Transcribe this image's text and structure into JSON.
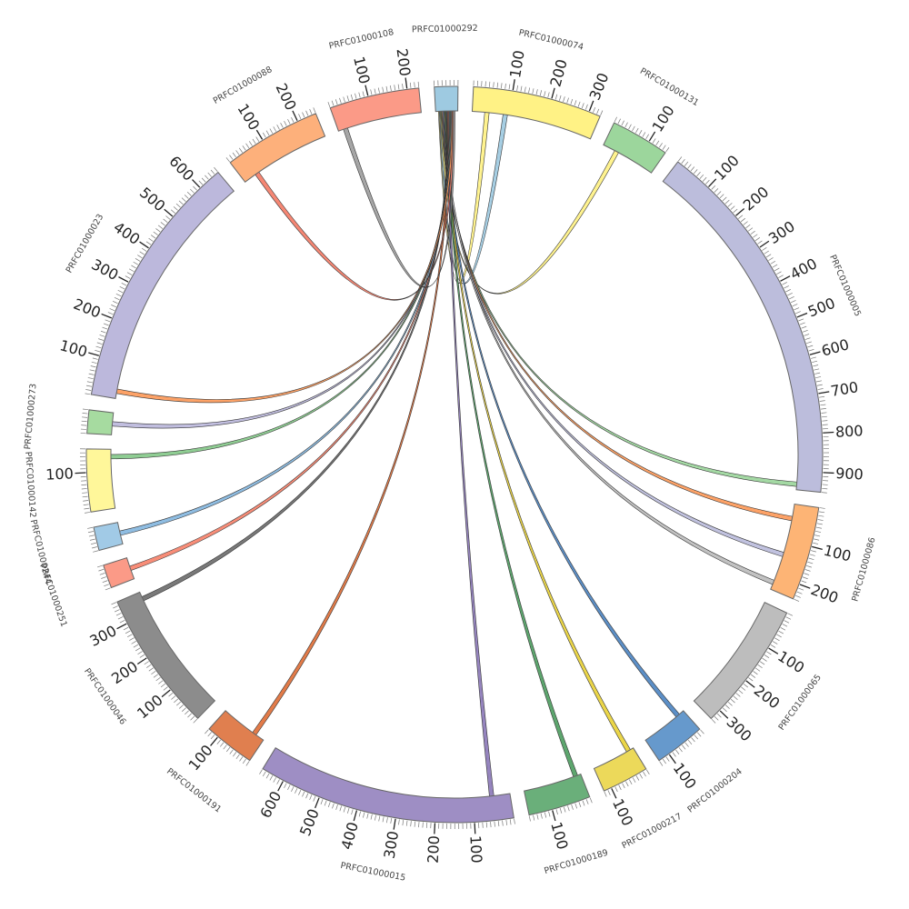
{
  "chart_data": {
    "type": "chord",
    "tick_major": 100,
    "tick_minor": 10,
    "segments": [
      {
        "id": "PRFC01000292",
        "length": 60,
        "color": "#9ecae1",
        "center": "PRFC01000292"
      },
      {
        "id": "PRFC01000074",
        "length": 330,
        "color": "#fff285",
        "center": "PRFC01000074"
      },
      {
        "id": "PRFC01000131",
        "length": 150,
        "color": "#9cd69c",
        "center": "PRFC01000131"
      },
      {
        "id": "PRFC01000005",
        "length": 950,
        "color": "#bcbddc",
        "center": "PRFC01000005"
      },
      {
        "id": "PRFC01000086",
        "length": 240,
        "color": "#fdb475",
        "center": "PRFC01000086"
      },
      {
        "id": "PRFC01000065",
        "length": 330,
        "color": "#bdbdbd",
        "center": "PRFC01000065"
      },
      {
        "id": "PRFC01000204",
        "length": 130,
        "color": "#6699cc",
        "center": "PRFC01000204"
      },
      {
        "id": "PRFC01000217",
        "length": 120,
        "color": "#ecd95a",
        "center": "PRFC01000217"
      },
      {
        "id": "PRFC01000189",
        "length": 160,
        "color": "#6aaf7a",
        "center": "PRFC01000189"
      },
      {
        "id": "PRFC01000015",
        "length": 660,
        "color": "#9e8ec4",
        "center": "PRFC01000015"
      },
      {
        "id": "PRFC01000191",
        "length": 130,
        "color": "#e07f4f",
        "center": "PRFC01000191"
      },
      {
        "id": "PRFC01000046",
        "length": 360,
        "color": "#8c8c8c",
        "center": "PRFC01000046"
      },
      {
        "id": "PRFC01000251",
        "length": 60,
        "color": "#fb9a87",
        "center": "PRFC01000251"
      },
      {
        "id": "PRFC01000244",
        "length": 60,
        "color": "#a1cae6",
        "center": "PRFC01000244"
      },
      {
        "id": "PRFC01000142",
        "length": 160,
        "color": "#fff79a",
        "center": "PRFC01000142"
      },
      {
        "id": "PRFC01000273",
        "length": 60,
        "color": "#a6dba0",
        "center": "PRFC01000273"
      },
      {
        "id": "PRFC01000023",
        "length": 660,
        "color": "#bcb8dc",
        "center": "PRFC01000023"
      },
      {
        "id": "PRFC01000088",
        "length": 250,
        "color": "#fdb07b",
        "center": "PRFC01000088"
      },
      {
        "id": "PRFC01000108",
        "length": 230,
        "color": "#fb9a87",
        "center": "PRFC01000108"
      }
    ],
    "links": [
      {
        "seg": "PRFC01000074",
        "pos": 40,
        "color": "#fff285"
      },
      {
        "seg": "PRFC01000074",
        "pos": 90,
        "color": "#9ecae1"
      },
      {
        "seg": "PRFC01000131",
        "pos": 40,
        "color": "#fff285"
      },
      {
        "seg": "PRFC01000005",
        "pos": 935,
        "color": "#9cd69c"
      },
      {
        "seg": "PRFC01000086",
        "pos": 40,
        "color": "#fd9a5a"
      },
      {
        "seg": "PRFC01000086",
        "pos": 140,
        "color": "#bcbddc"
      },
      {
        "seg": "PRFC01000086",
        "pos": 220,
        "color": "#bdbdbd"
      },
      {
        "seg": "PRFC01000204",
        "pos": 20,
        "color": "#4e86c2"
      },
      {
        "seg": "PRFC01000217",
        "pos": 15,
        "color": "#e9d23a"
      },
      {
        "seg": "PRFC01000189",
        "pos": 15,
        "color": "#4f9e62"
      },
      {
        "seg": "PRFC01000015",
        "pos": 50,
        "color": "#8c7ab8"
      },
      {
        "seg": "PRFC01000191",
        "pos": 30,
        "color": "#e0703a"
      },
      {
        "seg": "PRFC01000046",
        "pos": 340,
        "color": "#6e6e6e"
      },
      {
        "seg": "PRFC01000251",
        "pos": 30,
        "color": "#f7836d"
      },
      {
        "seg": "PRFC01000244",
        "pos": 30,
        "color": "#86b7df"
      },
      {
        "seg": "PRFC01000142",
        "pos": 140,
        "color": "#86c98a"
      },
      {
        "seg": "PRFC01000273",
        "pos": 30,
        "color": "#bcb8dc"
      },
      {
        "seg": "PRFC01000023",
        "pos": 20,
        "color": "#fd9a5a"
      },
      {
        "seg": "PRFC01000088",
        "pos": 40,
        "color": "#f47d68"
      },
      {
        "seg": "PRFC01000108",
        "pos": 20,
        "color": "#9e9e9e"
      }
    ]
  }
}
